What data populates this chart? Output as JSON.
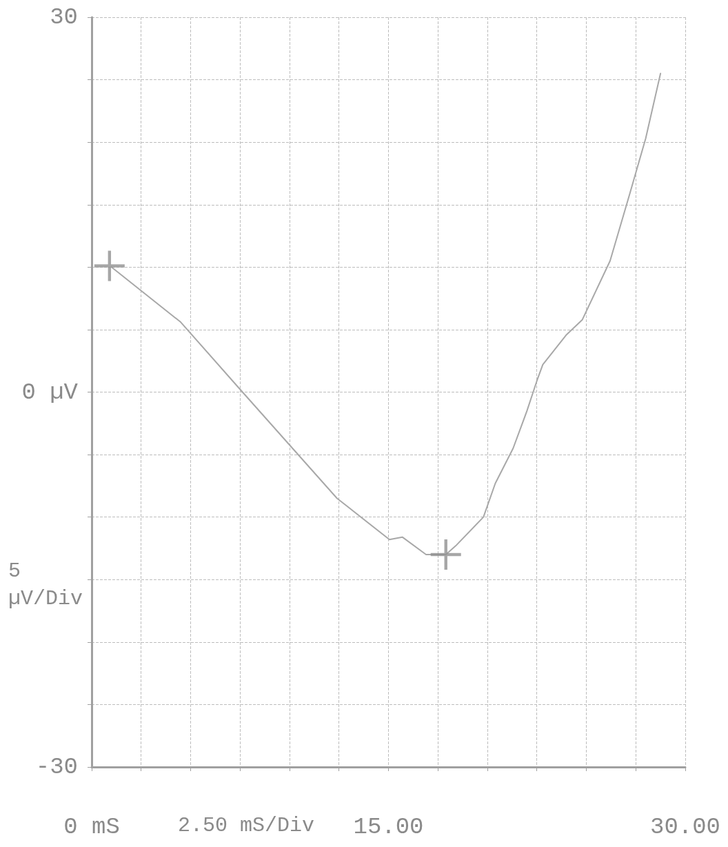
{
  "chart_data": {
    "type": "line",
    "xlim": [
      0,
      30
    ],
    "ylim": [
      -30,
      30
    ],
    "xticks": [
      {
        "value": 0,
        "label": "0 mS"
      },
      {
        "value": 2.5,
        "label": null
      },
      {
        "value": 5,
        "label": null
      },
      {
        "value": 7.5,
        "label": null
      },
      {
        "value": 10,
        "label": null
      },
      {
        "value": 12.5,
        "label": null
      },
      {
        "value": 15,
        "label": "15.00"
      },
      {
        "value": 17.5,
        "label": null
      },
      {
        "value": 20,
        "label": null
      },
      {
        "value": 22.5,
        "label": null
      },
      {
        "value": 25,
        "label": null
      },
      {
        "value": 27.5,
        "label": null
      },
      {
        "value": 30,
        "label": "30.00"
      }
    ],
    "yticks": [
      -30,
      {
        "value": -25,
        "label": null
      },
      {
        "value": -20,
        "label": null
      },
      {
        "value": -15,
        "label": null
      },
      {
        "value": -10,
        "label": null
      },
      {
        "value": -5,
        "label": null
      },
      {
        "value": 0,
        "label": "0 µV"
      },
      {
        "value": 5,
        "label": null
      },
      {
        "value": 10,
        "label": null
      },
      {
        "value": 15,
        "label": null
      },
      {
        "value": 20,
        "label": null
      },
      {
        "value": 25,
        "label": null
      },
      30
    ],
    "xlabel": "2.50 mS/Div",
    "ylabel": "5 µV/Div",
    "grid": true,
    "legend": false,
    "line_style": "solid",
    "series": [
      {
        "type": "line",
        "color": "#a8a8a8",
        "marker": "none",
        "x": [
          1.0,
          4.5,
          7.4,
          12.4,
          15.05,
          15.7,
          16.9,
          17.9,
          18.4,
          19.8,
          20.4,
          21.3,
          22.0,
          22.5,
          22.8,
          24.0,
          24.8,
          26.2,
          27.2,
          28.0,
          28.75
        ],
        "values": [
          10.0,
          5.6,
          0.4,
          -8.5,
          -11.8,
          -11.6,
          -13.0,
          -13.0,
          -12.3,
          -10.0,
          -7.3,
          -4.5,
          -1.5,
          0.9,
          2.2,
          4.6,
          5.8,
          10.5,
          15.9,
          20.3,
          25.5
        ]
      },
      {
        "type": "scatter",
        "color": "#909090",
        "marker": "cross",
        "x": [
          0.9,
          17.9
        ],
        "values": [
          10.1,
          -13.0
        ]
      }
    ]
  }
}
